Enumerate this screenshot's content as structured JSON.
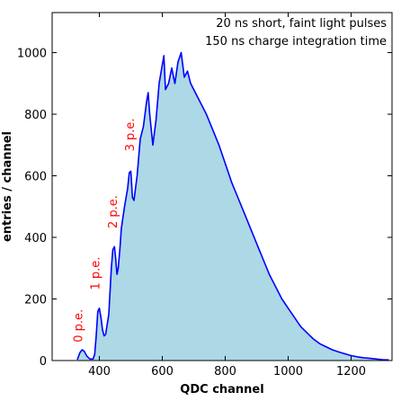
{
  "chart_data": {
    "type": "area",
    "title": "",
    "xlabel": "QDC channel",
    "ylabel": "entries / channel",
    "xlim": [
      250,
      1330
    ],
    "ylim": [
      0,
      1130
    ],
    "x_ticks": [
      400,
      600,
      800,
      1000,
      1200
    ],
    "y_ticks": [
      0,
      200,
      400,
      600,
      800,
      1000
    ],
    "grid": false,
    "fill_color": "#add8e6",
    "line_color": "#0000ff",
    "label_color": "#ff0000",
    "annotations": [
      "20 ns short, faint light pulses",
      "150 ns charge integration time"
    ],
    "peak_labels": [
      {
        "text": "0 p.e.",
        "x": 340,
        "y": 30
      },
      {
        "text": "1 p.e.",
        "x": 395,
        "y": 200
      },
      {
        "text": "2 p.e.",
        "x": 450,
        "y": 400
      },
      {
        "text": "3 p.e.",
        "x": 505,
        "y": 650
      }
    ],
    "series": [
      {
        "x": [
          330,
          338,
          345,
          352,
          360,
          370,
          380,
          385,
          390,
          395,
          400,
          405,
          410,
          415,
          420,
          430,
          438,
          443,
          448,
          452,
          456,
          460,
          465,
          470,
          480,
          490,
          495,
          500,
          505,
          510,
          520,
          530,
          540,
          550,
          555,
          560,
          570,
          580,
          590,
          600,
          605,
          610,
          620,
          630,
          640,
          650,
          660,
          670,
          680,
          690,
          700,
          720,
          740,
          760,
          780,
          800,
          820,
          840,
          860,
          880,
          900,
          920,
          940,
          960,
          980,
          1000,
          1020,
          1040,
          1060,
          1080,
          1100,
          1120,
          1140,
          1160,
          1180,
          1200,
          1220,
          1240,
          1260,
          1280,
          1300,
          1320
        ],
        "values": [
          3,
          25,
          35,
          30,
          15,
          5,
          5,
          20,
          80,
          160,
          170,
          140,
          100,
          80,
          85,
          150,
          300,
          360,
          370,
          330,
          280,
          300,
          360,
          430,
          500,
          560,
          610,
          615,
          530,
          520,
          600,
          720,
          760,
          840,
          870,
          800,
          700,
          780,
          900,
          960,
          990,
          880,
          900,
          950,
          900,
          970,
          1000,
          920,
          940,
          900,
          880,
          840,
          800,
          750,
          700,
          640,
          580,
          530,
          480,
          430,
          380,
          330,
          280,
          240,
          200,
          170,
          140,
          110,
          90,
          70,
          55,
          45,
          35,
          28,
          22,
          16,
          12,
          9,
          7,
          5,
          3,
          2
        ]
      }
    ]
  }
}
